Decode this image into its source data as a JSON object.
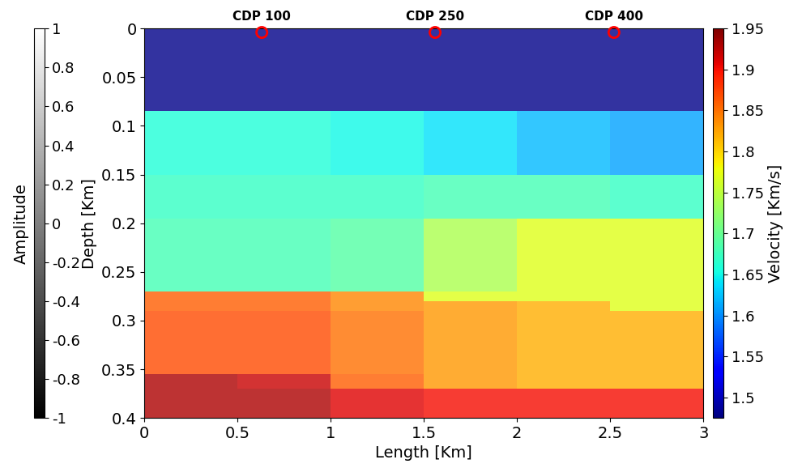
{
  "chart_data": {
    "type": "heatmap",
    "x_label": "Length [Km]",
    "y_label": "Depth [Km]",
    "x": [
      0,
      0.5,
      1,
      1.5,
      2,
      2.5,
      3
    ],
    "y": [
      0,
      0.085,
      0.15,
      0.195,
      0.27,
      0.28,
      0.29,
      0.355,
      0.37,
      0.4
    ],
    "cells": [
      [
        1.48,
        1.48,
        1.48,
        1.48,
        1.48,
        1.48
      ],
      [
        1.66,
        1.66,
        1.65,
        1.64,
        1.62,
        1.61
      ],
      [
        1.67,
        1.67,
        1.67,
        1.68,
        1.68,
        1.67
      ],
      [
        1.68,
        1.68,
        1.69,
        1.74,
        1.77,
        1.77
      ],
      [
        1.86,
        1.86,
        1.84,
        1.77,
        1.77,
        1.77
      ],
      [
        1.86,
        1.86,
        1.84,
        1.83,
        1.82,
        1.77
      ],
      [
        1.87,
        1.87,
        1.85,
        1.83,
        1.82,
        1.82
      ],
      [
        1.93,
        1.92,
        1.86,
        1.83,
        1.82,
        1.82
      ],
      [
        1.93,
        1.93,
        1.91,
        1.9,
        1.9,
        1.9
      ]
    ],
    "xlim": [
      0,
      3
    ],
    "ylim": [
      0.4,
      0
    ],
    "xticks": [
      0,
      0.5,
      1,
      1.5,
      2,
      2.5,
      3
    ],
    "yticks": [
      0,
      0.05,
      0.1,
      0.15,
      0.2,
      0.25,
      0.3,
      0.35,
      0.4
    ],
    "colorbar": {
      "label": "Velocity [Km/s]",
      "range": [
        1.475,
        1.95
      ],
      "ticks": [
        1.5,
        1.55,
        1.6,
        1.65,
        1.7,
        1.75,
        1.8,
        1.85,
        1.9,
        1.95
      ]
    },
    "amplitude_colorbar": {
      "label": "Amplitude",
      "range": [
        -1,
        1
      ],
      "ticks": [
        -1,
        -0.8,
        -0.6,
        -0.4,
        -0.2,
        0,
        0.2,
        0.4,
        0.6,
        0.8,
        1
      ]
    },
    "points": {
      "type": "scatter",
      "labels": [
        "CDP 100",
        "CDP 250",
        "CDP 400"
      ],
      "x": [
        0.63,
        1.56,
        2.52
      ],
      "y": [
        0.004,
        0.004,
        0.004
      ],
      "color": "red",
      "marker": "o"
    }
  }
}
